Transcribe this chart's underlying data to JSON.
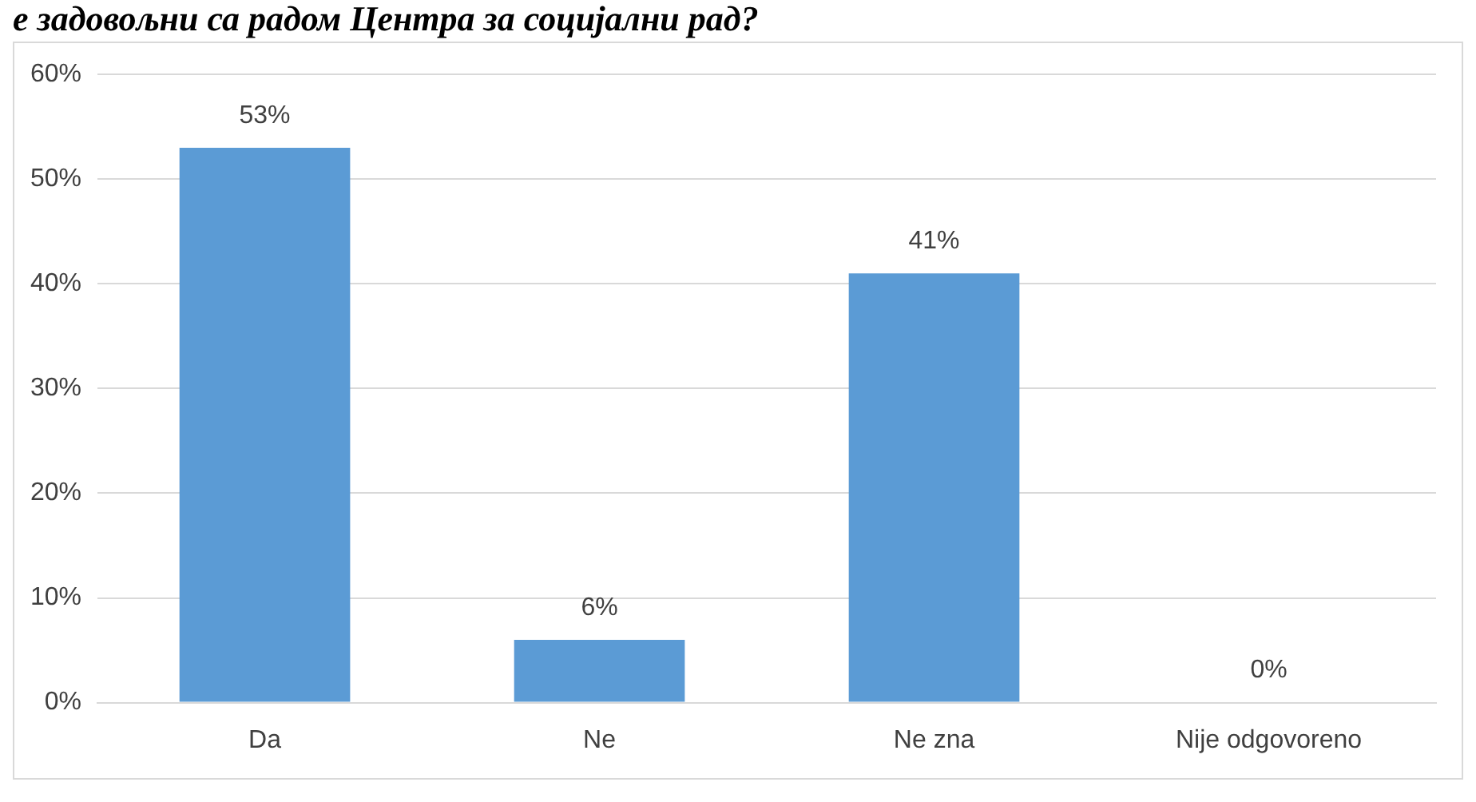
{
  "chart_data": {
    "type": "bar",
    "title": "е задовољни са радом Центра за социјални рад?",
    "categories": [
      "Da",
      "Ne",
      "Ne zna",
      "Nije odgovoreno"
    ],
    "values": [
      53,
      6,
      41,
      0
    ],
    "color": "#5b9bd5",
    "value_labels": [
      "53%",
      "6%",
      "41%",
      "0%"
    ],
    "ylim": [
      0,
      60
    ],
    "yticks": [
      {
        "value": 0,
        "label": "0%"
      },
      {
        "value": 10,
        "label": "10%"
      },
      {
        "value": 20,
        "label": "20%"
      },
      {
        "value": 30,
        "label": "30%"
      },
      {
        "value": 40,
        "label": "40%"
      },
      {
        "value": 50,
        "label": "50%"
      },
      {
        "value": 60,
        "label": "60%"
      }
    ],
    "grid": "y",
    "legend": false
  }
}
